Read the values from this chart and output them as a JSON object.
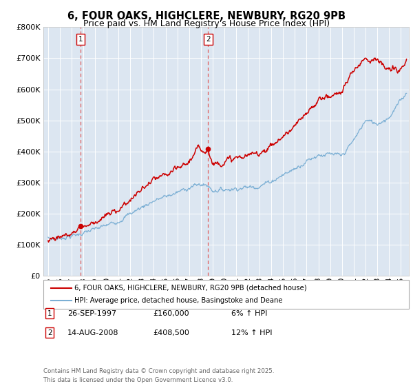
{
  "title_line1": "6, FOUR OAKS, HIGHCLERE, NEWBURY, RG20 9PB",
  "title_line2": "Price paid vs. HM Land Registry's House Price Index (HPI)",
  "background_color": "#dce6f1",
  "ylim": [
    0,
    800000
  ],
  "yticks": [
    0,
    100000,
    200000,
    300000,
    400000,
    500000,
    600000,
    700000,
    800000
  ],
  "sale1_date": "26-SEP-1997",
  "sale1_price": 160000,
  "sale1_pct": "6% ↑ HPI",
  "sale1_x": 1997.75,
  "sale1_y": 160000,
  "sale2_date": "14-AUG-2008",
  "sale2_price": 408500,
  "sale2_pct": "12% ↑ HPI",
  "sale2_x": 2008.62,
  "sale2_y": 408500,
  "legend_label1": "6, FOUR OAKS, HIGHCLERE, NEWBURY, RG20 9PB (detached house)",
  "legend_label2": "HPI: Average price, detached house, Basingstoke and Deane",
  "footer": "Contains HM Land Registry data © Crown copyright and database right 2025.\nThis data is licensed under the Open Government Licence v3.0.",
  "red_color": "#cc0000",
  "blue_color": "#7bafd4",
  "vline_color": "#e06060",
  "xlim_start": 1994.6,
  "xlim_end": 2025.7,
  "hpi_knots_x": [
    1995,
    1996,
    1997,
    1998,
    1999,
    2000,
    2001,
    2002,
    2003,
    2004,
    2005,
    2006,
    2007,
    2008,
    2008.62,
    2009,
    2010,
    2011,
    2012,
    2013,
    2014,
    2015,
    2016,
    2017,
    2018,
    2019,
    2020,
    2021,
    2022,
    2023,
    2024,
    2025.5
  ],
  "hpi_knots_y": [
    118000,
    122000,
    128000,
    138000,
    150000,
    163000,
    178000,
    200000,
    222000,
    242000,
    255000,
    268000,
    285000,
    295000,
    290000,
    275000,
    278000,
    282000,
    285000,
    290000,
    305000,
    325000,
    345000,
    370000,
    390000,
    390000,
    385000,
    435000,
    500000,
    490000,
    510000,
    590000
  ],
  "price_knots_x": [
    1995,
    1996,
    1997,
    1997.75,
    1998.5,
    1999,
    2000,
    2001,
    2002,
    2003,
    2004,
    2005,
    2006,
    2007,
    2007.8,
    2008,
    2008.62,
    2009,
    2010,
    2011,
    2012,
    2013,
    2014,
    2015,
    2016,
    2017,
    2018,
    2018.5,
    2019,
    2020,
    2021,
    2022,
    2022.5,
    2023,
    2023.5,
    2024,
    2025,
    2025.5
  ],
  "price_knots_y": [
    120000,
    126000,
    135000,
    160000,
    165000,
    175000,
    192000,
    215000,
    245000,
    278000,
    308000,
    322000,
    342000,
    368000,
    410000,
    405000,
    408500,
    360000,
    368000,
    378000,
    385000,
    398000,
    418000,
    448000,
    480000,
    520000,
    565000,
    580000,
    575000,
    595000,
    660000,
    705000,
    695000,
    700000,
    670000,
    660000,
    665000,
    685000
  ]
}
